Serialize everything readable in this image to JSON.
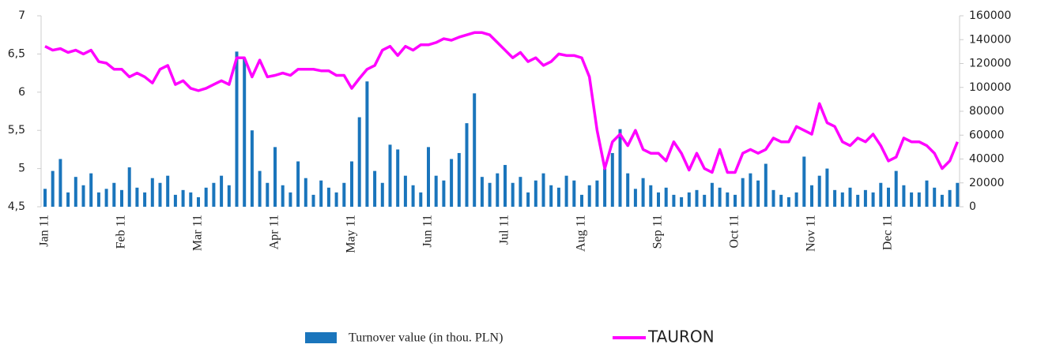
{
  "chart_data": {
    "type": "bar_line",
    "categories": [
      "Jan 11",
      null,
      null,
      null,
      null,
      null,
      null,
      null,
      null,
      null,
      "Feb 11",
      null,
      null,
      null,
      null,
      null,
      null,
      null,
      null,
      null,
      "Mar 11",
      null,
      null,
      null,
      null,
      null,
      null,
      null,
      null,
      null,
      "Apr 11",
      null,
      null,
      null,
      null,
      null,
      null,
      null,
      null,
      null,
      "May 11",
      null,
      null,
      null,
      null,
      null,
      null,
      null,
      null,
      null,
      "Jun 11",
      null,
      null,
      null,
      null,
      null,
      null,
      null,
      null,
      null,
      "Jul 11",
      null,
      null,
      null,
      null,
      null,
      null,
      null,
      null,
      null,
      "Aug 11",
      null,
      null,
      null,
      null,
      null,
      null,
      null,
      null,
      null,
      "Sep 11",
      null,
      null,
      null,
      null,
      null,
      null,
      null,
      null,
      null,
      "Oct 11",
      null,
      null,
      null,
      null,
      null,
      null,
      null,
      null,
      null,
      "Nov 11",
      null,
      null,
      null,
      null,
      null,
      null,
      null,
      null,
      null,
      "Dec 11",
      null,
      null,
      null,
      null,
      null,
      null,
      null,
      null,
      null
    ],
    "series": [
      {
        "name": "Turnover value (in thou. PLN)",
        "color": "#1a75bc",
        "axis": "y2",
        "kind": "bar",
        "values": [
          15000,
          30000,
          40000,
          12000,
          25000,
          18000,
          28000,
          12000,
          15000,
          20000,
          14000,
          33000,
          16000,
          12000,
          24000,
          20000,
          26000,
          10000,
          14000,
          12000,
          8000,
          16000,
          20000,
          26000,
          18000,
          130000,
          124000,
          64000,
          30000,
          20000,
          50000,
          18000,
          12000,
          38000,
          24000,
          10000,
          22000,
          16000,
          12000,
          20000,
          38000,
          75000,
          105000,
          30000,
          20000,
          52000,
          48000,
          26000,
          18000,
          12000,
          50000,
          26000,
          22000,
          40000,
          45000,
          70000,
          95000,
          25000,
          20000,
          28000,
          35000,
          20000,
          25000,
          12000,
          22000,
          28000,
          18000,
          16000,
          26000,
          22000,
          10000,
          18000,
          22000,
          32000,
          45000,
          65000,
          28000,
          15000,
          24000,
          18000,
          12000,
          16000,
          10000,
          8000,
          12000,
          14000,
          10000,
          20000,
          16000,
          12000,
          10000,
          24000,
          28000,
          22000,
          36000,
          14000,
          10000,
          8000,
          12000,
          42000,
          18000,
          26000,
          32000,
          14000,
          12000,
          16000,
          10000,
          14000,
          12000,
          20000,
          16000,
          30000,
          18000,
          12000,
          12000,
          22000,
          16000,
          10000,
          14000,
          20000
        ]
      },
      {
        "name": "TAURON",
        "color": "#ff00ff",
        "axis": "y",
        "kind": "line",
        "values": [
          6.6,
          6.55,
          6.57,
          6.52,
          6.55,
          6.5,
          6.55,
          6.4,
          6.38,
          6.3,
          6.3,
          6.2,
          6.25,
          6.2,
          6.12,
          6.3,
          6.35,
          6.1,
          6.15,
          6.05,
          6.02,
          6.05,
          6.1,
          6.15,
          6.1,
          6.45,
          6.45,
          6.2,
          6.42,
          6.2,
          6.22,
          6.25,
          6.22,
          6.3,
          6.3,
          6.3,
          6.28,
          6.28,
          6.22,
          6.22,
          6.05,
          6.18,
          6.3,
          6.35,
          6.55,
          6.6,
          6.48,
          6.6,
          6.55,
          6.62,
          6.62,
          6.65,
          6.7,
          6.68,
          6.72,
          6.75,
          6.78,
          6.78,
          6.75,
          6.65,
          6.55,
          6.45,
          6.52,
          6.4,
          6.45,
          6.35,
          6.4,
          6.5,
          6.48,
          6.48,
          6.45,
          6.2,
          5.5,
          5.0,
          5.35,
          5.45,
          5.3,
          5.5,
          5.25,
          5.2,
          5.2,
          5.1,
          5.35,
          5.2,
          4.98,
          5.2,
          5.0,
          4.95,
          5.25,
          4.95,
          4.95,
          5.2,
          5.25,
          5.2,
          5.25,
          5.4,
          5.35,
          5.35,
          5.55,
          5.5,
          5.45,
          5.85,
          5.6,
          5.55,
          5.35,
          5.3,
          5.4,
          5.35,
          5.45,
          5.3,
          5.1,
          5.15,
          5.4,
          5.35,
          5.35,
          5.3,
          5.2,
          5.0,
          5.1,
          5.35
        ]
      }
    ],
    "ylim": [
      4.5,
      7
    ],
    "yticks": [
      {
        "value": 4.5,
        "label": "4,5"
      },
      5,
      {
        "value": 5.5,
        "label": "5,5"
      },
      6,
      {
        "value": 6.5,
        "label": "6,5"
      },
      7
    ],
    "y2lim": [
      0,
      160000
    ],
    "y2ticks": [
      0,
      20000,
      40000,
      60000,
      80000,
      100000,
      120000,
      140000,
      160000
    ],
    "grid": false,
    "legend": "bottom"
  }
}
